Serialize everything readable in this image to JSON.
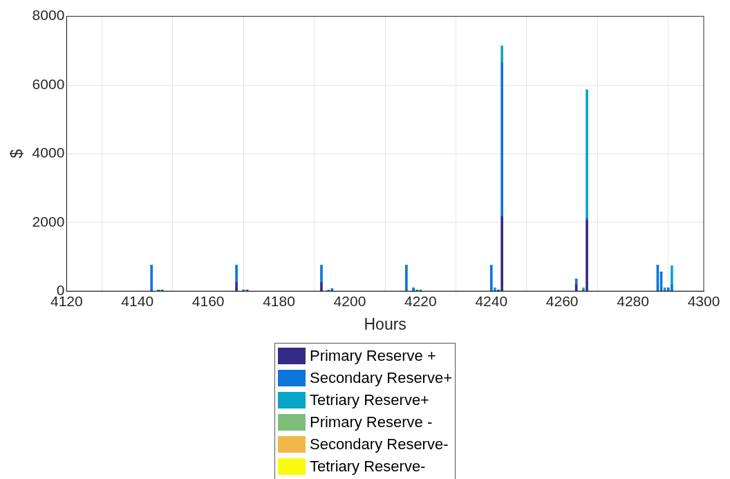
{
  "chart_data": {
    "type": "bar",
    "stacked": true,
    "xlabel": "Hours",
    "ylabel": "$",
    "x": [
      4144,
      4146,
      4147,
      4168,
      4170,
      4171,
      4192,
      4194,
      4195,
      4216,
      4218,
      4219,
      4220,
      4240,
      4241,
      4242,
      4243,
      4264,
      4266,
      4267,
      4287,
      4288,
      4289,
      4290,
      4291
    ],
    "series": [
      {
        "name": "Primary Reserve +",
        "color": "#352a87",
        "values": [
          0,
          0,
          0,
          250,
          0,
          0,
          250,
          0,
          0,
          0,
          0,
          0,
          0,
          0,
          0,
          20,
          2170,
          190,
          0,
          2060,
          0,
          0,
          0,
          0,
          0
        ]
      },
      {
        "name": "Secondary Reserve+",
        "color": "#0d75dc",
        "values": [
          750,
          40,
          40,
          500,
          40,
          40,
          500,
          0,
          70,
          750,
          100,
          30,
          30,
          750,
          20,
          20,
          4480,
          160,
          40,
          70,
          750,
          560,
          20,
          100,
          190
        ]
      },
      {
        "name": "Tetriary Reserve+",
        "color": "#08a6c6",
        "values": [
          0,
          0,
          0,
          0,
          0,
          0,
          0,
          40,
          0,
          0,
          0,
          0,
          0,
          0,
          80,
          0,
          490,
          0,
          60,
          3730,
          0,
          0,
          80,
          0,
          540
        ]
      },
      {
        "name": "Primary Reserve -",
        "color": "#7dbf7a",
        "values": [
          0,
          0,
          0,
          0,
          0,
          0,
          0,
          0,
          0,
          0,
          0,
          0,
          0,
          0,
          0,
          0,
          0,
          0,
          0,
          0,
          0,
          0,
          0,
          0,
          0
        ]
      },
      {
        "name": "Secondary Reserve-",
        "color": "#f2b74a",
        "values": [
          0,
          0,
          0,
          0,
          0,
          0,
          0,
          0,
          0,
          0,
          0,
          0,
          0,
          0,
          0,
          0,
          0,
          0,
          0,
          0,
          0,
          0,
          0,
          0,
          0
        ]
      },
      {
        "name": "Tetriary Reserve-",
        "color": "#f9fa0f",
        "values": [
          0,
          0,
          0,
          0,
          0,
          0,
          0,
          0,
          0,
          0,
          0,
          0,
          0,
          0,
          0,
          0,
          0,
          0,
          0,
          0,
          0,
          0,
          0,
          0,
          0
        ]
      }
    ],
    "xlim": [
      4120,
      4300
    ],
    "xticks": [
      4120,
      4140,
      4160,
      4180,
      4200,
      4220,
      4240,
      4260,
      4280,
      4300
    ],
    "ylim": [
      0,
      8000
    ],
    "yticks": [
      0,
      2000,
      4000,
      6000,
      8000
    ],
    "grid": true,
    "legend": "bottom"
  }
}
